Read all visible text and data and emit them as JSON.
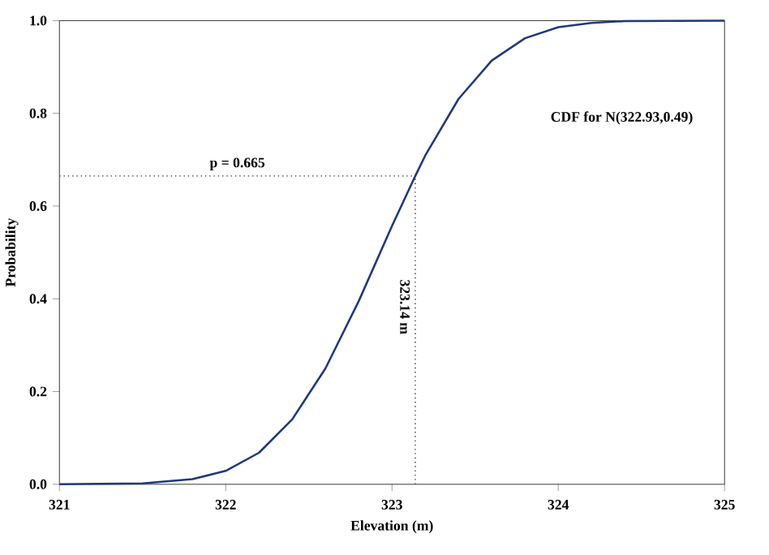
{
  "chart_data": {
    "type": "line",
    "xlabel": "Elevation (m)",
    "ylabel": "Probability",
    "x": [
      321,
      321.5,
      321.8,
      322.0,
      322.2,
      322.4,
      322.6,
      322.8,
      323.0,
      323.14,
      323.2,
      323.4,
      323.6,
      323.8,
      324.0,
      324.2,
      324.4,
      325
    ],
    "series": [
      {
        "color": "#1f3a78",
        "values": [
          0.0,
          0.002,
          0.011,
          0.029,
          0.068,
          0.14,
          0.25,
          0.395,
          0.557,
          0.665,
          0.709,
          0.831,
          0.914,
          0.962,
          0.986,
          0.995,
          0.999,
          1.0
        ]
      }
    ],
    "xlim": [
      321,
      325
    ],
    "ylim": [
      0,
      1
    ],
    "xticks": [
      321,
      322,
      323,
      324,
      325
    ],
    "yticks": [
      {
        "value": 0,
        "label": "0.0"
      },
      {
        "value": 0.2,
        "label": "0.2"
      },
      {
        "value": 0.4,
        "label": "0.4"
      },
      {
        "value": 0.6,
        "label": "0.6"
      },
      {
        "value": 0.8,
        "label": "0.8"
      },
      {
        "value": 1,
        "label": "1.0"
      }
    ],
    "ref_lines": [
      {
        "axis": "y",
        "value": 0.665,
        "label": "p = 0.665",
        "line_style": "dotted",
        "color": "#333333"
      },
      {
        "axis": "x",
        "value": 323.14,
        "label": "323.14 m",
        "line_style": "dotted",
        "color": "#333333"
      }
    ],
    "annotations": [
      "CDF for N(322.93,0.49)"
    ],
    "grid": false,
    "marker": "none",
    "line_style": "solid"
  }
}
